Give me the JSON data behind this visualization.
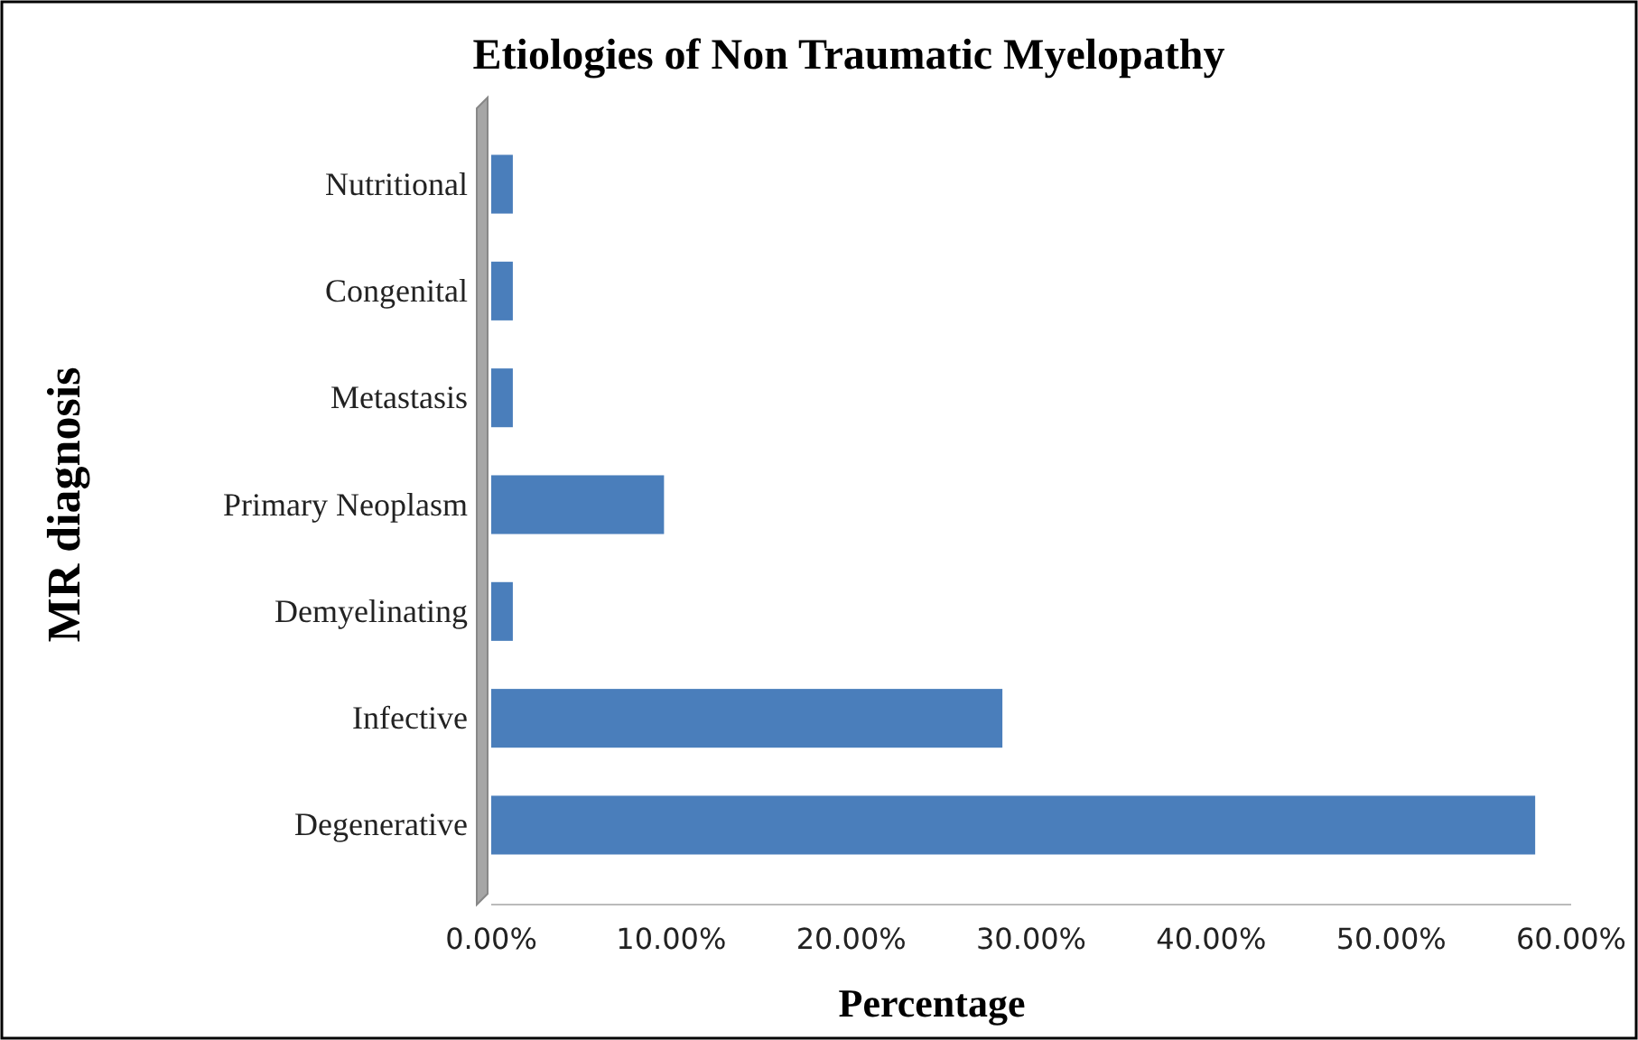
{
  "chart_data": {
    "type": "bar",
    "orientation": "horizontal",
    "title": "Etiologies of Non Traumatic Myelopathy",
    "xlabel": "Percentage",
    "ylabel": "MR diagnosis",
    "categories": [
      "Nutritional",
      "Congenital",
      "Metastasis",
      "Primary Neoplasm",
      "Demyelinating",
      "Infective",
      "Degenerative"
    ],
    "values": [
      1.2,
      1.2,
      1.2,
      9.6,
      1.2,
      28.4,
      58
    ],
    "color": "#4a7ebb",
    "xlim": [
      0,
      60
    ],
    "xticks": [
      {
        "value": 0,
        "label": "0.00%"
      },
      {
        "value": 10,
        "label": "10.00%"
      },
      {
        "value": 20,
        "label": "20.00%"
      },
      {
        "value": 30,
        "label": "30.00%"
      },
      {
        "value": 40,
        "label": "40.00%"
      },
      {
        "value": 50,
        "label": "50.00%"
      },
      {
        "value": 60,
        "label": "60.00%"
      }
    ],
    "grid": false
  }
}
